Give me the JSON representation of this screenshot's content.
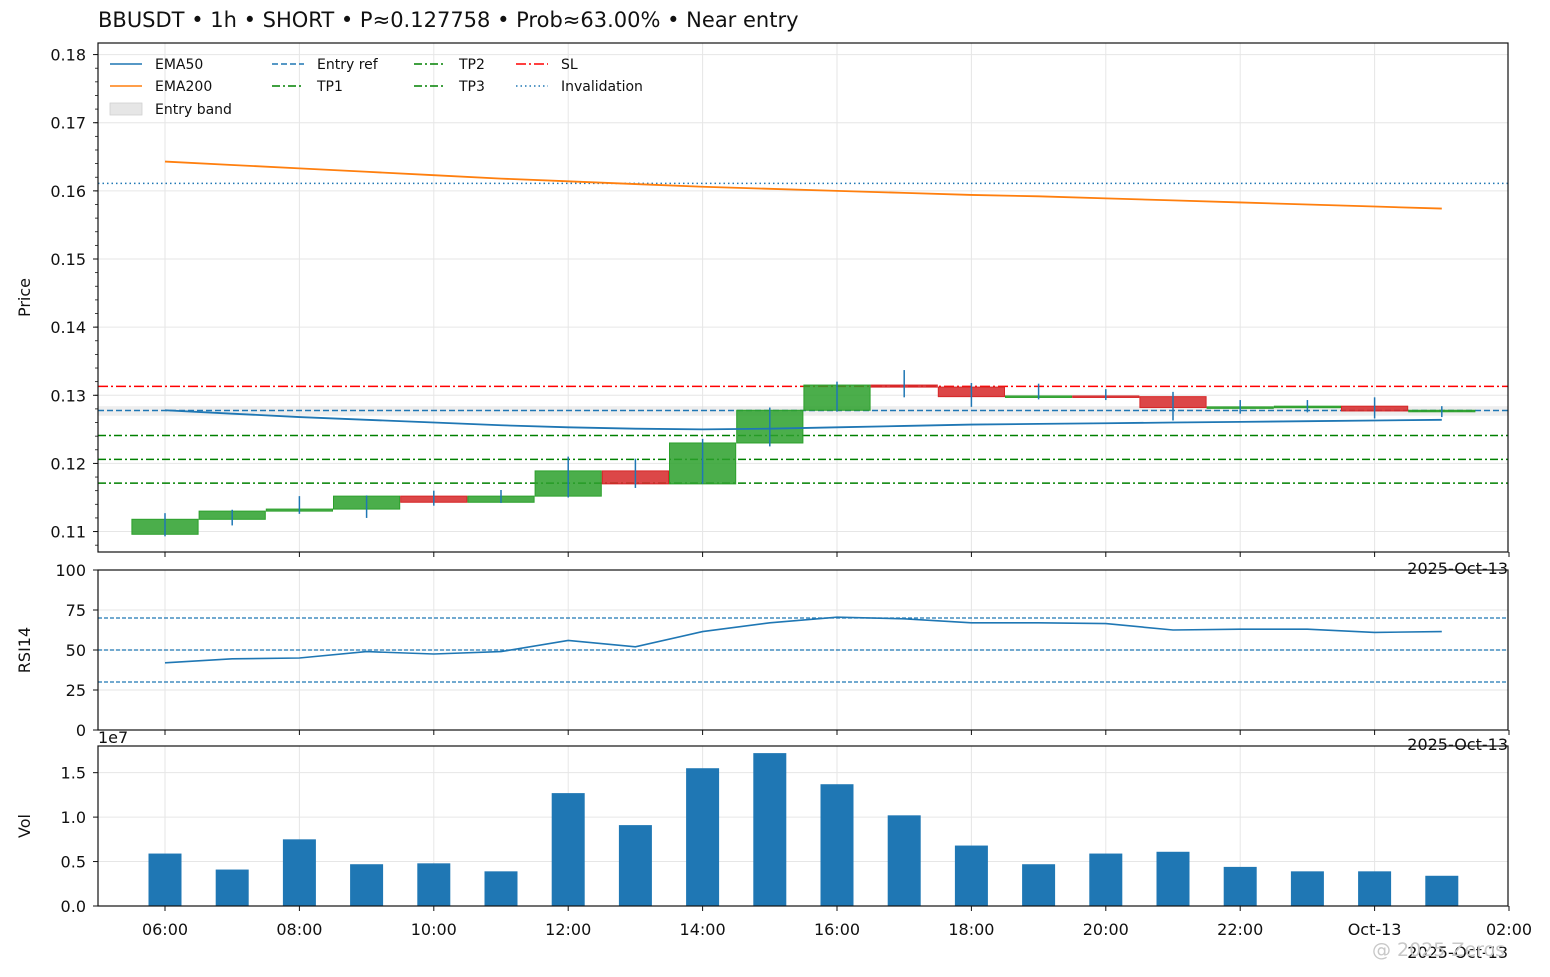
{
  "title": "BBUSDT • 1h • SHORT • P≈0.127758 • Prob≈63.00% • Near entry",
  "watermark": "@ 2025 Zeros",
  "colors": {
    "up": "#2ca02c",
    "down": "#d62728",
    "wick": "#1f77b4",
    "ema50": "#1f77b4",
    "ema200": "#ff7f0e",
    "entry": "#1f77b4",
    "tp": "#008000",
    "sl": "#ff0000",
    "invalidation": "#1f77b4",
    "vol": "#1f77b4"
  },
  "chart_data": [
    {
      "type": "candlestick",
      "ylabel": "Price",
      "ylim": [
        0.107,
        0.1817
      ],
      "yticks": [
        "0.11",
        "0.12",
        "0.13",
        "0.14",
        "0.15",
        "0.16",
        "0.17",
        "0.18"
      ],
      "corner_label": "2025-Oct-13",
      "legend": {
        "placement": "top-left",
        "entries": [
          "EMA50",
          "EMA200",
          "Entry band",
          "Entry ref",
          "TP1",
          "TP2",
          "TP3",
          "SL",
          "Invalidation"
        ]
      },
      "candles": [
        {
          "t": "06:00",
          "o": 0.1096,
          "h": 0.1127,
          "l": 0.1093,
          "c": 0.1118
        },
        {
          "t": "07:00",
          "o": 0.1118,
          "h": 0.1132,
          "l": 0.1109,
          "c": 0.113
        },
        {
          "t": "08:00",
          "o": 0.113,
          "h": 0.1152,
          "l": 0.1126,
          "c": 0.1133
        },
        {
          "t": "09:00",
          "o": 0.1133,
          "h": 0.1153,
          "l": 0.112,
          "c": 0.1152
        },
        {
          "t": "10:00",
          "o": 0.1152,
          "h": 0.116,
          "l": 0.1138,
          "c": 0.1143
        },
        {
          "t": "11:00",
          "o": 0.1143,
          "h": 0.1161,
          "l": 0.1142,
          "c": 0.1152
        },
        {
          "t": "12:00",
          "o": 0.1152,
          "h": 0.121,
          "l": 0.115,
          "c": 0.1189
        },
        {
          "t": "13:00",
          "o": 0.1189,
          "h": 0.1207,
          "l": 0.1164,
          "c": 0.117
        },
        {
          "t": "14:00",
          "o": 0.117,
          "h": 0.1236,
          "l": 0.117,
          "c": 0.123
        },
        {
          "t": "15:00",
          "o": 0.123,
          "h": 0.1282,
          "l": 0.1225,
          "c": 0.1278
        },
        {
          "t": "16:00",
          "o": 0.1278,
          "h": 0.132,
          "l": 0.1276,
          "c": 0.1315
        },
        {
          "t": "17:00",
          "o": 0.1315,
          "h": 0.1337,
          "l": 0.1297,
          "c": 0.1312
        },
        {
          "t": "18:00",
          "o": 0.1312,
          "h": 0.1318,
          "l": 0.1283,
          "c": 0.1298
        },
        {
          "t": "19:00",
          "o": 0.1298,
          "h": 0.1317,
          "l": 0.1294,
          "c": 0.1299
        },
        {
          "t": "20:00",
          "o": 0.1299,
          "h": 0.1309,
          "l": 0.1293,
          "c": 0.1298
        },
        {
          "t": "21:00",
          "o": 0.1298,
          "h": 0.1305,
          "l": 0.1263,
          "c": 0.1282
        },
        {
          "t": "22:00",
          "o": 0.1282,
          "h": 0.1293,
          "l": 0.1273,
          "c": 0.1283
        },
        {
          "t": "23:00",
          "o": 0.1283,
          "h": 0.1293,
          "l": 0.1275,
          "c": 0.1284
        },
        {
          "t": "00:00",
          "o": 0.1284,
          "h": 0.1297,
          "l": 0.1266,
          "c": 0.1277
        },
        {
          "t": "01:00",
          "o": 0.1277,
          "h": 0.1284,
          "l": 0.1268,
          "c": 0.1278
        }
      ],
      "ema50": [
        0.1278,
        0.1273,
        0.1268,
        0.1264,
        0.126,
        0.1256,
        0.1253,
        0.1251,
        0.125,
        0.1251,
        0.1253,
        0.1255,
        0.1257,
        0.1258,
        0.1259,
        0.126,
        0.1261,
        0.1262,
        0.1263,
        0.1264
      ],
      "ema200": [
        0.1643,
        0.1638,
        0.1633,
        0.1628,
        0.1623,
        0.1618,
        0.1614,
        0.161,
        0.1606,
        0.1603,
        0.16,
        0.1597,
        0.1594,
        0.1592,
        0.1589,
        0.1586,
        0.1583,
        0.158,
        0.1577,
        0.1574
      ],
      "levels": {
        "entry_ref": 0.127758,
        "tp1": 0.1241,
        "tp2": 0.1206,
        "tp3": 0.1171,
        "sl": 0.1313,
        "invalidation": 0.1611,
        "entry_band": [
          0.127,
          0.1284
        ]
      }
    },
    {
      "type": "line",
      "ylabel": "RSI14",
      "ylim": [
        0,
        100
      ],
      "yticks": [
        "0",
        "25",
        "50",
        "75",
        "100"
      ],
      "corner_label": "2025-Oct-13",
      "guides": [
        30,
        50,
        70
      ],
      "values": [
        42,
        44.5,
        45,
        49,
        47.5,
        49,
        56,
        52,
        61.5,
        67,
        70.5,
        69.5,
        67,
        67,
        66.5,
        62.5,
        63,
        63,
        61,
        61.5
      ]
    },
    {
      "type": "bar",
      "ylabel": "Vol",
      "scale_label": "1e7",
      "ylim": [
        0,
        1.8
      ],
      "yticks": [
        "0.0",
        "0.5",
        "1.0",
        "1.5"
      ],
      "values": [
        0.59,
        0.41,
        0.75,
        0.47,
        0.48,
        0.39,
        1.27,
        0.91,
        1.55,
        1.72,
        1.37,
        1.02,
        0.68,
        0.47,
        0.59,
        0.61,
        0.44,
        0.39,
        0.39,
        0.34
      ],
      "xticks": [
        "06:00",
        "08:00",
        "10:00",
        "12:00",
        "14:00",
        "16:00",
        "18:00",
        "20:00",
        "22:00",
        "Oct-13",
        "02:00"
      ],
      "corner_label": "2025-Oct-13"
    }
  ]
}
